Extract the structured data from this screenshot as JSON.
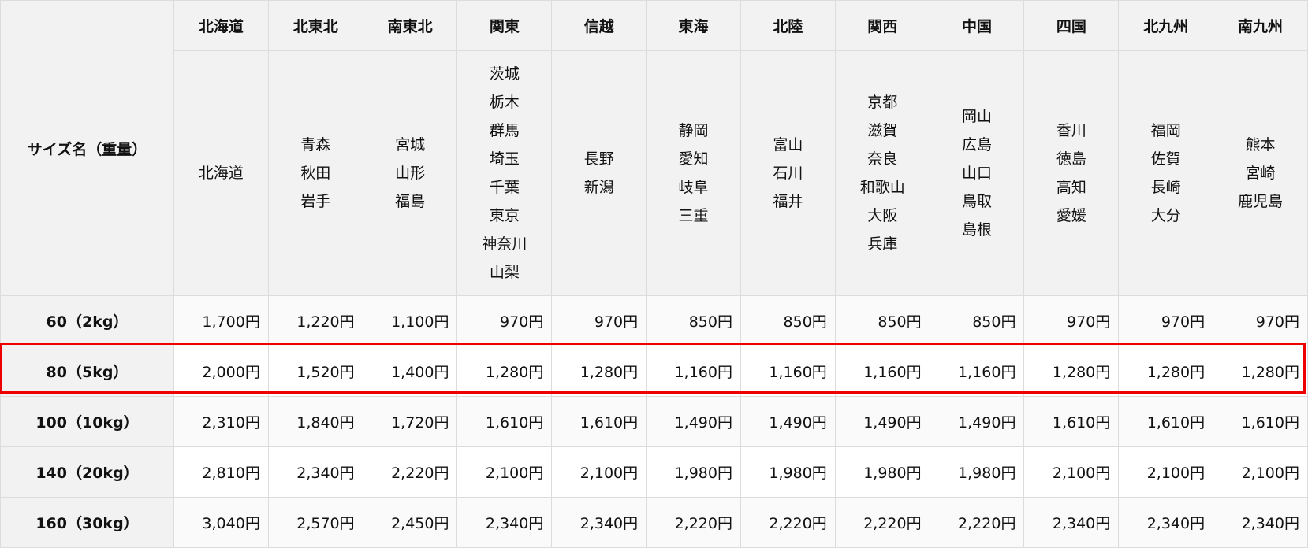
{
  "table": {
    "corner_label": "サイズ名（重量）",
    "regions": [
      {
        "name": "北海道",
        "prefectures": [
          "北海道"
        ]
      },
      {
        "name": "北東北",
        "prefectures": [
          "青森",
          "秋田",
          "岩手"
        ]
      },
      {
        "name": "南東北",
        "prefectures": [
          "宮城",
          "山形",
          "福島"
        ]
      },
      {
        "name": "関東",
        "prefectures": [
          "茨城",
          "栃木",
          "群馬",
          "埼玉",
          "千葉",
          "東京",
          "神奈川",
          "山梨"
        ]
      },
      {
        "name": "信越",
        "prefectures": [
          "長野",
          "新潟"
        ]
      },
      {
        "name": "東海",
        "prefectures": [
          "静岡",
          "愛知",
          "岐阜",
          "三重"
        ]
      },
      {
        "name": "北陸",
        "prefectures": [
          "富山",
          "石川",
          "福井"
        ]
      },
      {
        "name": "関西",
        "prefectures": [
          "京都",
          "滋賀",
          "奈良",
          "和歌山",
          "大阪",
          "兵庫"
        ]
      },
      {
        "name": "中国",
        "prefectures": [
          "岡山",
          "広島",
          "山口",
          "鳥取",
          "島根"
        ]
      },
      {
        "name": "四国",
        "prefectures": [
          "香川",
          "徳島",
          "高知",
          "愛媛"
        ]
      },
      {
        "name": "北九州",
        "prefectures": [
          "福岡",
          "佐賀",
          "長崎",
          "大分"
        ]
      },
      {
        "name": "南九州",
        "prefectures": [
          "熊本",
          "宮崎",
          "鹿児島"
        ]
      }
    ],
    "rows": [
      {
        "size": "60（2kg）",
        "prices": [
          "1,700円",
          "1,220円",
          "1,100円",
          "970円",
          "970円",
          "850円",
          "850円",
          "850円",
          "850円",
          "970円",
          "970円",
          "970円"
        ]
      },
      {
        "size": "80（5kg）",
        "highlighted": true,
        "prices": [
          "2,000円",
          "1,520円",
          "1,400円",
          "1,280円",
          "1,280円",
          "1,160円",
          "1,160円",
          "1,160円",
          "1,160円",
          "1,280円",
          "1,280円",
          "1,280円"
        ]
      },
      {
        "size": "100（10kg）",
        "prices": [
          "2,310円",
          "1,840円",
          "1,720円",
          "1,610円",
          "1,610円",
          "1,490円",
          "1,490円",
          "1,490円",
          "1,490円",
          "1,610円",
          "1,610円",
          "1,610円"
        ]
      },
      {
        "size": "140（20kg）",
        "prices": [
          "2,810円",
          "2,340円",
          "2,220円",
          "2,100円",
          "2,100円",
          "1,980円",
          "1,980円",
          "1,980円",
          "1,980円",
          "2,100円",
          "2,100円",
          "2,100円"
        ]
      },
      {
        "size": "160（30kg）",
        "prices": [
          "3,040円",
          "2,570円",
          "2,450円",
          "2,340円",
          "2,340円",
          "2,220円",
          "2,220円",
          "2,220円",
          "2,220円",
          "2,340円",
          "2,340円",
          "2,340円"
        ]
      }
    ],
    "highlight_color": "#ee0000"
  }
}
